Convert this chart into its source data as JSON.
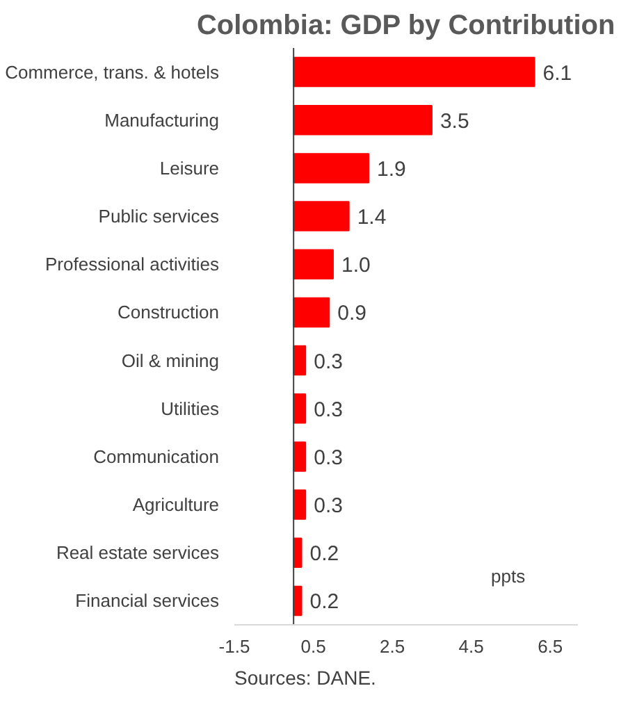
{
  "chart_data": {
    "type": "bar",
    "orientation": "horizontal",
    "title": "Colombia: GDP by Contribution",
    "categories": [
      "Commerce, trans. & hotels",
      "Manufacturing",
      "Leisure",
      "Public services",
      "Professional activities",
      "Construction",
      "Oil & mining",
      "Utilities",
      "Communication",
      "Agriculture",
      "Real estate services",
      "Financial services"
    ],
    "values": [
      6.1,
      3.5,
      1.9,
      1.4,
      1.0,
      0.9,
      0.3,
      0.3,
      0.3,
      0.3,
      0.2,
      0.2
    ],
    "color": "#ff0000",
    "value_labels": [
      "6.1",
      "3.5",
      "1.9",
      "1.4",
      "1.0",
      "0.9",
      "0.3",
      "0.3",
      "0.3",
      "0.3",
      "0.2",
      "0.2"
    ],
    "xlim": [
      -1.5,
      7.2
    ],
    "xticks": [
      -1.5,
      0.5,
      2.5,
      4.5,
      6.5
    ],
    "grid": false,
    "annotations": [
      "ppts",
      "Sources: DANE."
    ]
  }
}
